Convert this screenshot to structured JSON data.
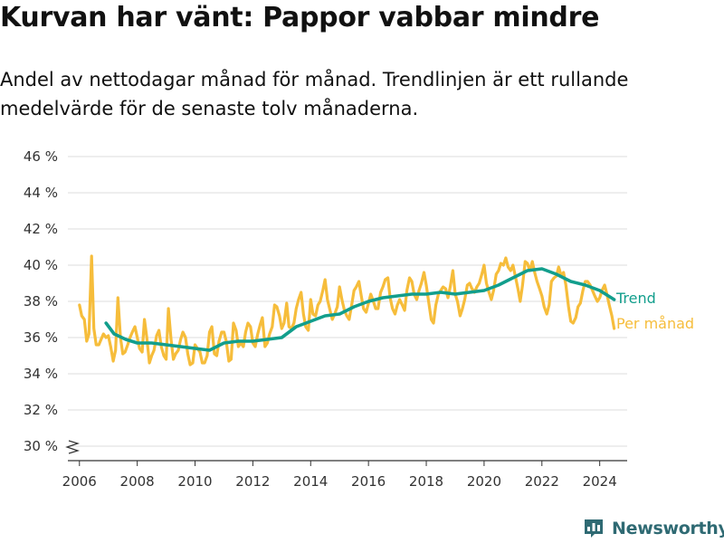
{
  "chart_data": {
    "type": "line",
    "title": "Kurvan har vänt: Pappor vabbar mindre",
    "subtitle": "Andel av nettodagar månad för månad. Trendlinjen är ett rullande medelvärde för de senaste tolv månaderna.",
    "xlabel": "",
    "ylabel": "",
    "xlim": [
      2005.6,
      2024.95
    ],
    "ylim": [
      29.3,
      46.8
    ],
    "y_axis_break": true,
    "y_ticks": [
      30,
      32,
      34,
      36,
      38,
      40,
      42,
      44,
      46
    ],
    "y_tick_labels": [
      "30 %",
      "32 %",
      "34 %",
      "36 %",
      "38 %",
      "40 %",
      "42 %",
      "44 %",
      "46 %"
    ],
    "x_ticks": [
      2006,
      2008,
      2010,
      2012,
      2014,
      2016,
      2018,
      2020,
      2022,
      2024
    ],
    "x_tick_labels": [
      "2006",
      "2008",
      "2010",
      "2012",
      "2014",
      "2016",
      "2018",
      "2020",
      "2022",
      "2024"
    ],
    "grid": "horizontal",
    "legend": "direct labels at right end of lines",
    "series": [
      {
        "name": "Per månad",
        "color": "#f6bd3b",
        "x": [
          2006.0,
          2006.08,
          2006.17,
          2006.25,
          2006.33,
          2006.42,
          2006.5,
          2006.58,
          2006.67,
          2006.75,
          2006.83,
          2006.92,
          2007.0,
          2007.08,
          2007.17,
          2007.25,
          2007.33,
          2007.42,
          2007.5,
          2007.58,
          2007.67,
          2007.75,
          2007.83,
          2007.92,
          2008.0,
          2008.08,
          2008.17,
          2008.25,
          2008.33,
          2008.42,
          2008.5,
          2008.58,
          2008.67,
          2008.75,
          2008.83,
          2008.92,
          2009.0,
          2009.08,
          2009.17,
          2009.25,
          2009.33,
          2009.42,
          2009.5,
          2009.58,
          2009.67,
          2009.75,
          2009.83,
          2009.92,
          2010.0,
          2010.08,
          2010.17,
          2010.25,
          2010.33,
          2010.42,
          2010.5,
          2010.58,
          2010.67,
          2010.75,
          2010.83,
          2010.92,
          2011.0,
          2011.08,
          2011.17,
          2011.25,
          2011.33,
          2011.42,
          2011.5,
          2011.58,
          2011.67,
          2011.75,
          2011.83,
          2011.92,
          2012.0,
          2012.08,
          2012.17,
          2012.25,
          2012.33,
          2012.42,
          2012.5,
          2012.58,
          2012.67,
          2012.75,
          2012.83,
          2012.92,
          2013.0,
          2013.08,
          2013.17,
          2013.25,
          2013.33,
          2013.42,
          2013.5,
          2013.58,
          2013.67,
          2013.75,
          2013.83,
          2013.92,
          2014.0,
          2014.08,
          2014.17,
          2014.25,
          2014.33,
          2014.42,
          2014.5,
          2014.58,
          2014.67,
          2014.75,
          2014.83,
          2014.92,
          2015.0,
          2015.08,
          2015.17,
          2015.25,
          2015.33,
          2015.42,
          2015.5,
          2015.58,
          2015.67,
          2015.75,
          2015.83,
          2015.92,
          2016.0,
          2016.08,
          2016.17,
          2016.25,
          2016.33,
          2016.42,
          2016.5,
          2016.58,
          2016.67,
          2016.75,
          2016.83,
          2016.92,
          2017.0,
          2017.08,
          2017.17,
          2017.25,
          2017.33,
          2017.42,
          2017.5,
          2017.58,
          2017.67,
          2017.75,
          2017.83,
          2017.92,
          2018.0,
          2018.08,
          2018.17,
          2018.25,
          2018.33,
          2018.42,
          2018.5,
          2018.58,
          2018.67,
          2018.75,
          2018.83,
          2018.92,
          2019.0,
          2019.08,
          2019.17,
          2019.25,
          2019.33,
          2019.42,
          2019.5,
          2019.58,
          2019.67,
          2019.75,
          2019.83,
          2019.92,
          2020.0,
          2020.08,
          2020.17,
          2020.25,
          2020.33,
          2020.42,
          2020.5,
          2020.58,
          2020.67,
          2020.75,
          2020.83,
          2020.92,
          2021.0,
          2021.08,
          2021.17,
          2021.25,
          2021.33,
          2021.42,
          2021.5,
          2021.58,
          2021.67,
          2021.75,
          2021.83,
          2021.92,
          2022.0,
          2022.08,
          2022.17,
          2022.25,
          2022.33,
          2022.42,
          2022.5,
          2022.58,
          2022.67,
          2022.75,
          2022.83,
          2022.92,
          2023.0,
          2023.08,
          2023.17,
          2023.25,
          2023.33,
          2023.42,
          2023.5,
          2023.58,
          2023.67,
          2023.75,
          2023.83,
          2023.92,
          2024.0,
          2024.08,
          2024.17,
          2024.25,
          2024.33,
          2024.42,
          2024.5
        ],
        "values": [
          37.8,
          37.2,
          37.0,
          35.8,
          36.2,
          40.5,
          36.5,
          35.6,
          35.6,
          35.9,
          36.2,
          36.0,
          36.1,
          35.5,
          34.7,
          35.3,
          38.2,
          36.0,
          35.1,
          35.2,
          35.6,
          36.0,
          36.3,
          36.6,
          36.0,
          35.4,
          35.2,
          37.0,
          36.0,
          34.6,
          35.0,
          35.3,
          36.1,
          36.4,
          35.5,
          35.0,
          34.8,
          37.6,
          35.9,
          34.8,
          35.1,
          35.3,
          35.9,
          36.3,
          36.0,
          35.1,
          34.5,
          34.6,
          35.6,
          35.4,
          35.2,
          34.6,
          34.6,
          35.0,
          36.3,
          36.6,
          35.1,
          35.0,
          35.8,
          36.3,
          36.3,
          35.8,
          34.7,
          34.8,
          36.8,
          36.4,
          35.5,
          35.7,
          35.5,
          36.3,
          36.8,
          36.6,
          35.7,
          35.5,
          36.2,
          36.7,
          37.1,
          35.5,
          35.7,
          36.2,
          36.6,
          37.8,
          37.7,
          37.2,
          36.5,
          36.8,
          37.9,
          36.6,
          36.5,
          36.8,
          37.6,
          38.1,
          38.5,
          37.3,
          36.6,
          36.4,
          38.1,
          37.3,
          37.2,
          37.8,
          38.0,
          38.6,
          39.2,
          38.1,
          37.5,
          37.0,
          37.3,
          37.7,
          38.8,
          38.1,
          37.5,
          37.2,
          37.0,
          37.8,
          38.6,
          38.8,
          39.1,
          38.3,
          37.6,
          37.4,
          37.9,
          38.4,
          38.0,
          37.6,
          37.6,
          38.5,
          38.8,
          39.2,
          39.3,
          38.2,
          37.6,
          37.3,
          37.8,
          38.1,
          37.8,
          37.5,
          38.6,
          39.3,
          39.1,
          38.4,
          38.1,
          38.6,
          39.0,
          39.6,
          38.9,
          38.0,
          37.0,
          36.8,
          37.8,
          38.4,
          38.6,
          38.8,
          38.7,
          38.2,
          38.8,
          39.7,
          38.4,
          38.0,
          37.2,
          37.6,
          38.1,
          38.9,
          39.0,
          38.7,
          38.5,
          38.8,
          39.0,
          39.5,
          40.0,
          39.0,
          38.5,
          38.1,
          38.6,
          39.5,
          39.7,
          40.1,
          40.0,
          40.4,
          39.9,
          39.7,
          40.0,
          39.4,
          38.7,
          38.0,
          38.9,
          40.2,
          40.1,
          39.7,
          40.2,
          39.6,
          39.1,
          38.7,
          38.3,
          37.7,
          37.3,
          37.8,
          39.1,
          39.3,
          39.4,
          39.9,
          39.4,
          39.6,
          38.9,
          37.7,
          36.9,
          36.8,
          37.1,
          37.7,
          37.9,
          38.6,
          39.1,
          39.1,
          38.9,
          38.6,
          38.3,
          38.0,
          38.2,
          38.6,
          38.9,
          38.4,
          37.8,
          37.2,
          36.5
        ]
      },
      {
        "name": "Trend",
        "color": "#129e8c",
        "x": [
          2006.92,
          2007.2,
          2007.6,
          2008.0,
          2008.5,
          2009.0,
          2009.5,
          2010.0,
          2010.5,
          2011.0,
          2011.5,
          2012.0,
          2012.5,
          2013.0,
          2013.5,
          2014.0,
          2014.5,
          2015.0,
          2015.5,
          2016.0,
          2016.5,
          2017.0,
          2017.5,
          2018.0,
          2018.5,
          2019.0,
          2019.5,
          2020.0,
          2020.5,
          2021.0,
          2021.5,
          2022.0,
          2022.5,
          2023.0,
          2023.5,
          2024.0,
          2024.5
        ],
        "values": [
          36.8,
          36.2,
          35.9,
          35.7,
          35.7,
          35.6,
          35.5,
          35.4,
          35.3,
          35.7,
          35.8,
          35.8,
          35.9,
          36.0,
          36.6,
          36.9,
          37.2,
          37.3,
          37.7,
          38.0,
          38.2,
          38.3,
          38.4,
          38.4,
          38.5,
          38.4,
          38.5,
          38.6,
          38.9,
          39.3,
          39.7,
          39.8,
          39.5,
          39.1,
          38.9,
          38.6,
          38.1
        ]
      }
    ]
  },
  "brand": {
    "name": "Newsworthy",
    "logo_icon": "bar-chart-badge-icon",
    "color": "#2f6a73"
  }
}
